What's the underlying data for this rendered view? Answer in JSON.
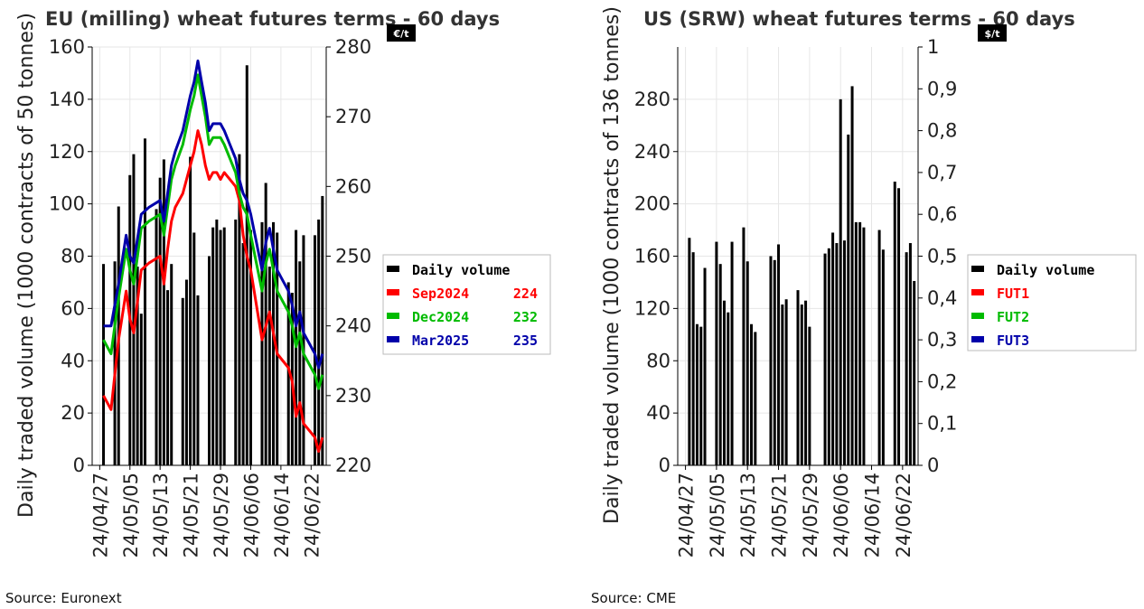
{
  "colors": {
    "volume": "#000000",
    "series1": "#ff0000",
    "series2": "#00bb00",
    "series3": "#0000aa",
    "grid": "#e6e6e6"
  },
  "chart_data": [
    {
      "type": "bar",
      "title": "EU (milling) wheat futures terms - 60 days",
      "ylabel": "Daily traded volume (1000 contracts of 50 tonnes)",
      "y2unit": "€/t",
      "source": "Source: Euronext",
      "ylim": [
        0,
        160
      ],
      "yticks": [
        "0",
        "20",
        "40",
        "60",
        "80",
        "100",
        "120",
        "140",
        "160"
      ],
      "y2lim": [
        220,
        280
      ],
      "y2ticks": [
        "220",
        "230",
        "240",
        "250",
        "260",
        "270",
        "280"
      ],
      "xlim": [
        0,
        62
      ],
      "xticks": [
        {
          "pos": 2,
          "label": "24/04/27"
        },
        {
          "pos": 10,
          "label": "24/05/05"
        },
        {
          "pos": 18,
          "label": "24/05/13"
        },
        {
          "pos": 26,
          "label": "24/05/21"
        },
        {
          "pos": 34,
          "label": "24/05/29"
        },
        {
          "pos": 42,
          "label": "24/06/06"
        },
        {
          "pos": 50,
          "label": "24/06/14"
        },
        {
          "pos": 58,
          "label": "24/06/22"
        }
      ],
      "grid": true,
      "legend_position": "right",
      "volume_bars": {
        "name": "Daily volume",
        "x": [
          3,
          6,
          7,
          10,
          11,
          12,
          13,
          14,
          17,
          18,
          19,
          20,
          21,
          24,
          25,
          26,
          27,
          28,
          31,
          32,
          33,
          34,
          35,
          38,
          39,
          40,
          41,
          42,
          45,
          46,
          47,
          48,
          49,
          52,
          53,
          54,
          55,
          56,
          59,
          60,
          61
        ],
        "values": [
          77,
          78,
          99,
          111,
          119,
          76,
          58,
          125,
          98,
          110,
          117,
          67,
          77,
          64,
          71,
          118,
          89,
          65,
          80,
          91,
          94,
          90,
          91,
          94,
          119,
          85,
          153,
          90,
          93,
          108,
          76,
          93,
          89,
          70,
          66,
          90,
          78,
          88,
          88,
          94,
          103
        ]
      },
      "series": [
        {
          "name": "Sep2024",
          "last": "224",
          "x": [
            3,
            5,
            7,
            9,
            10,
            11,
            13,
            15,
            18,
            19,
            20,
            21,
            22,
            24,
            26,
            27,
            28,
            29,
            30,
            31,
            32,
            33,
            34,
            35,
            38,
            39,
            40,
            41,
            42,
            45,
            46,
            47,
            49,
            52,
            53,
            54,
            55,
            56,
            59,
            60,
            61
          ],
          "values": [
            230,
            228,
            238,
            245,
            241,
            239,
            248,
            249,
            250,
            246,
            251,
            255,
            257,
            259,
            263,
            265,
            268,
            266,
            263,
            261,
            262,
            262,
            261,
            262,
            260,
            258,
            253,
            250,
            248,
            238,
            240,
            242,
            236,
            234,
            232,
            227,
            229,
            226,
            224,
            222,
            224
          ]
        },
        {
          "name": "Dec2024",
          "last": "232",
          "x": [
            3,
            5,
            7,
            9,
            10,
            11,
            13,
            15,
            18,
            19,
            20,
            21,
            22,
            24,
            26,
            27,
            28,
            29,
            30,
            31,
            32,
            33,
            34,
            35,
            38,
            39,
            40,
            41,
            42,
            45,
            46,
            47,
            49,
            52,
            53,
            54,
            55,
            56,
            59,
            60,
            61
          ],
          "values": [
            238,
            236,
            244,
            251,
            248,
            246,
            254,
            255,
            256,
            253,
            257,
            261,
            263,
            266,
            271,
            273,
            276,
            273,
            270,
            266,
            267,
            267,
            267,
            266,
            262,
            259,
            257,
            256,
            253,
            245,
            249,
            251,
            245,
            242,
            240,
            237,
            239,
            236,
            233,
            231,
            233
          ]
        },
        {
          "name": "Mar2025",
          "last": "235",
          "x": [
            3,
            5,
            7,
            9,
            10,
            11,
            13,
            15,
            18,
            19,
            20,
            21,
            22,
            24,
            26,
            27,
            28,
            29,
            30,
            31,
            32,
            33,
            34,
            35,
            38,
            39,
            40,
            41,
            42,
            45,
            46,
            47,
            49,
            52,
            53,
            54,
            55,
            56,
            59,
            60,
            61
          ],
          "values": [
            240,
            240,
            246,
            253,
            250,
            249,
            256,
            257,
            258,
            255,
            259,
            263,
            265,
            268,
            273,
            275,
            278,
            275,
            272,
            268,
            269,
            269,
            269,
            268,
            264,
            261,
            259,
            258,
            256,
            248,
            252,
            254,
            248,
            245,
            243,
            240,
            242,
            239,
            236,
            234,
            236
          ]
        }
      ]
    },
    {
      "type": "bar",
      "title": "US (SRW) wheat futures terms - 60 days",
      "ylabel": "Daily traded volume (1000 contracts of 136 tonnes)",
      "y2unit": "$/t",
      "source": "Source: CME",
      "ylim": [
        0,
        320
      ],
      "yticks": [
        "0",
        "40",
        "80",
        "120",
        "160",
        "200",
        "240",
        "280"
      ],
      "y2lim": [
        0,
        1
      ],
      "y2ticks": [
        "0",
        "0,1",
        "0,2",
        "0,3",
        "0,4",
        "0,5",
        "0,6",
        "0,7",
        "0,8",
        "0,9",
        "1"
      ],
      "xlim": [
        0,
        62
      ],
      "xticks": [
        {
          "pos": 2,
          "label": "24/04/27"
        },
        {
          "pos": 10,
          "label": "24/05/05"
        },
        {
          "pos": 18,
          "label": "24/05/13"
        },
        {
          "pos": 26,
          "label": "24/05/21"
        },
        {
          "pos": 34,
          "label": "24/05/29"
        },
        {
          "pos": 42,
          "label": "24/06/06"
        },
        {
          "pos": 50,
          "label": "24/06/14"
        },
        {
          "pos": 58,
          "label": "24/06/22"
        }
      ],
      "grid": true,
      "legend_position": "right",
      "volume_bars": {
        "name": "Daily volume",
        "x": [
          3,
          4,
          5,
          6,
          7,
          10,
          11,
          12,
          13,
          14,
          17,
          18,
          19,
          20,
          21,
          24,
          25,
          26,
          27,
          28,
          31,
          32,
          33,
          34,
          35,
          38,
          39,
          40,
          41,
          42,
          43,
          44,
          45,
          46,
          47,
          48,
          52,
          53,
          56,
          57,
          59,
          60,
          61
        ],
        "values": [
          174,
          163,
          108,
          106,
          151,
          171,
          154,
          126,
          117,
          171,
          182,
          156,
          108,
          102,
          0,
          160,
          157,
          169,
          123,
          127,
          134,
          123,
          126,
          106,
          0,
          162,
          166,
          178,
          170,
          280,
          172,
          253,
          290,
          186,
          186,
          182,
          180,
          165,
          217,
          212,
          163,
          170,
          141
        ]
      },
      "series": [
        {
          "name": "FUT1",
          "last": "",
          "x": [],
          "values": []
        },
        {
          "name": "FUT2",
          "last": "",
          "x": [],
          "values": []
        },
        {
          "name": "FUT3",
          "last": "",
          "x": [],
          "values": []
        }
      ]
    }
  ]
}
